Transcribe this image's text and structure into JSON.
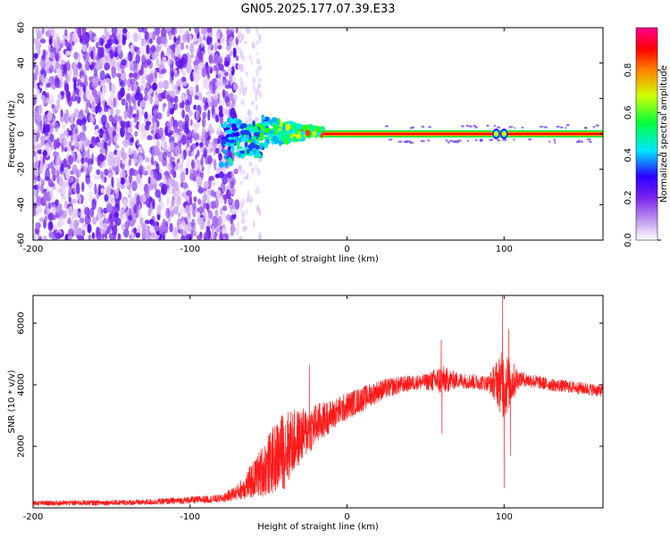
{
  "chart_data": [
    {
      "type": "heatmap",
      "title": "GN05.2025.177.07.39.E33",
      "xlabel": "Height of straight line (km)",
      "ylabel": "Frequency (Hz)",
      "xlim": [
        -200,
        163
      ],
      "ylim": [
        -60,
        60
      ],
      "x_ticks": [
        -200,
        -100,
        0,
        100
      ],
      "y_ticks": [
        -60,
        -40,
        -20,
        0,
        20,
        40,
        60
      ],
      "colorbar": {
        "label": "Normalized spectral amplitude",
        "range": [
          0,
          1
        ],
        "ticks": [
          "0.0",
          "0.2",
          "0.4",
          "0.6",
          "0.8"
        ],
        "colormap": [
          "#ffffff",
          "#c8a8f0",
          "#7a22f0",
          "#2a00ff",
          "#00e6ff",
          "#00ff40",
          "#d0ff00",
          "#ff8000",
          "#ff0000",
          "#ff0090"
        ]
      },
      "features": {
        "noise_region_x": [
          -200,
          -70
        ],
        "noise_fade_x": [
          -70,
          -55
        ],
        "turbulent_band_x": [
          -80,
          -15
        ],
        "stable_line": {
          "x": [
            -15,
            163
          ],
          "frequency": 0,
          "amplitude": 0.95
        },
        "bumps_x": [
          95,
          100
        ]
      }
    },
    {
      "type": "line",
      "xlabel": "Height of straight line (km)",
      "ylabel": "SNR (10 * v/v)",
      "xlim": [
        -200,
        163
      ],
      "ylim": [
        0,
        6900
      ],
      "x_ticks": [
        -200,
        -100,
        0,
        100
      ],
      "y_ticks": [
        2000,
        4000,
        6000
      ],
      "series": [
        {
          "color": "#ff1a1a",
          "envelope": {
            "x": [
              -200,
              -130,
              -80,
              -70,
              -60,
              -50,
              -40,
              -30,
              -20,
              -10,
              0,
              10,
              20,
              30,
              40,
              50,
              60,
              70,
              80,
              90,
              95,
              100,
              105,
              110,
              130,
              163
            ],
            "base": [
              150,
              180,
              300,
              500,
              900,
              1400,
              1900,
              2300,
              2700,
              3000,
              3300,
              3550,
              3800,
              3950,
              4050,
              4100,
              4150,
              4150,
              4100,
              4050,
              4100,
              4000,
              4100,
              4200,
              4000,
              3800
            ],
            "noise": [
              80,
              90,
              130,
              250,
              600,
              1000,
              1300,
              900,
              700,
              500,
              450,
              400,
              350,
              300,
              250,
              250,
              500,
              250,
              250,
              250,
              700,
              1200,
              700,
              250,
              200,
              200
            ]
          },
          "spikes": [
            {
              "x": -24,
              "value": 4650
            },
            {
              "x": 60,
              "value": 5450
            },
            {
              "x": 60.5,
              "value": 2400
            },
            {
              "x": 99,
              "value": 6900
            },
            {
              "x": 100,
              "value": 650
            },
            {
              "x": 103,
              "value": 5800
            },
            {
              "x": 104,
              "value": 1700
            }
          ]
        }
      ]
    }
  ]
}
